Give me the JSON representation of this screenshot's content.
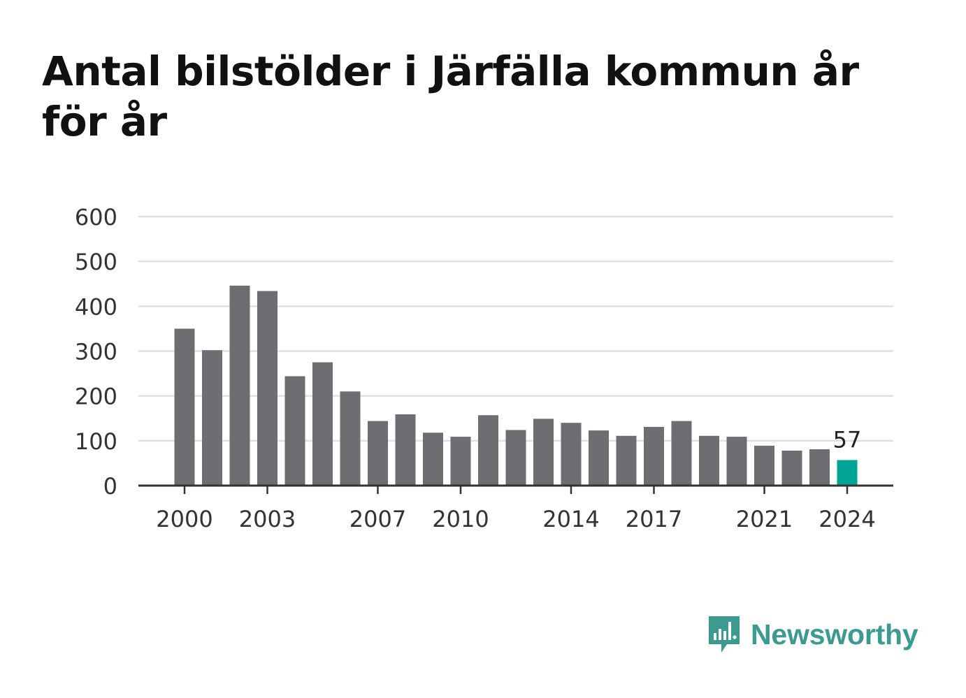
{
  "header": {
    "title": "Antal bilstölder i Järfälla kommun år för år"
  },
  "chart_data": {
    "type": "bar",
    "title": "Antal bilstölder i Järfälla kommun år för år",
    "xlabel": "",
    "ylabel": "",
    "categories": [
      "2000",
      "2001",
      "2002",
      "2003",
      "2004",
      "2005",
      "2006",
      "2007",
      "2008",
      "2009",
      "2010",
      "2011",
      "2012",
      "2013",
      "2014",
      "2015",
      "2016",
      "2017",
      "2018",
      "2019",
      "2020",
      "2021",
      "2022",
      "2023",
      "2024"
    ],
    "values": [
      350,
      302,
      446,
      434,
      244,
      275,
      210,
      144,
      159,
      118,
      109,
      157,
      124,
      149,
      140,
      123,
      111,
      131,
      144,
      111,
      109,
      89,
      78,
      81,
      57
    ],
    "ylim": [
      0,
      600
    ],
    "yticks": [
      0,
      100,
      200,
      300,
      400,
      500,
      600
    ],
    "xtick_labels": [
      "2000",
      "2003",
      "2007",
      "2010",
      "2014",
      "2017",
      "2021",
      "2024"
    ],
    "highlight": {
      "category": "2024",
      "label": "57"
    },
    "grid": true,
    "colors": {
      "bar": "#6e6d72",
      "highlight": "#00a596",
      "grid": "#e0e0e0",
      "axis": "#333333"
    }
  },
  "branding": {
    "logo_text": "Newsworthy",
    "logo_color": "#3d9a90"
  }
}
